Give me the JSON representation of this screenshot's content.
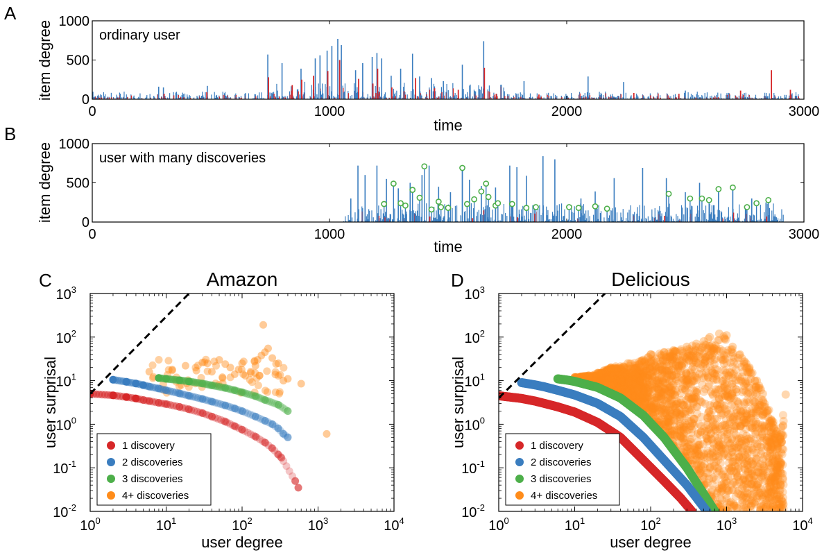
{
  "panels": {
    "a": {
      "letter": "A",
      "inset_label": "ordinary user",
      "ylabel": "item degree",
      "xlabel": "time",
      "xticks": [
        "0",
        "1000",
        "2000",
        "3000"
      ],
      "yticks": [
        "0",
        "500",
        "1000"
      ]
    },
    "b": {
      "letter": "B",
      "inset_label": "user with many discoveries",
      "ylabel": "item degree",
      "xlabel": "time",
      "xticks": [
        "0",
        "1000",
        "2000",
        "3000"
      ],
      "yticks": [
        "0",
        "500",
        "1000"
      ]
    },
    "c": {
      "letter": "C",
      "title": "Amazon",
      "xlabel": "user degree",
      "ylabel": "user surprisal",
      "xticks": [
        "10^0",
        "10^1",
        "10^2",
        "10^3",
        "10^4"
      ],
      "yticks": [
        "10^-2",
        "10^-1",
        "10^0",
        "10^1",
        "10^2",
        "10^3"
      ],
      "legend": [
        "1 discovery",
        "2 discoveries",
        "3 discoveries",
        "4+ discoveries"
      ]
    },
    "d": {
      "letter": "D",
      "title": "Delicious",
      "xlabel": "user degree",
      "ylabel": "user surprisal",
      "xticks": [
        "10^0",
        "10^1",
        "10^2",
        "10^3",
        "10^4"
      ],
      "yticks": [
        "10^-2",
        "10^-1",
        "10^0",
        "10^1",
        "10^2",
        "10^3"
      ],
      "legend": [
        "1 discovery",
        "2 discoveries",
        "3 discoveries",
        "4+ discoveries"
      ]
    }
  },
  "colors": {
    "blue": "#3a7dbf",
    "red": "#d62728",
    "green": "#4daf4a",
    "orange": "#ff8c1a",
    "ring": "#4daf4a"
  },
  "chart_data": [
    {
      "type": "bar",
      "panel": "A",
      "xlabel": "time",
      "ylabel": "item degree",
      "xlim": [
        0,
        3000
      ],
      "ylim": [
        0,
        1000
      ],
      "series": [
        {
          "x": [
            280,
            300,
            485,
            740,
            800,
            880,
            940,
            960,
            990,
            1010,
            1035,
            1050,
            1110,
            1140,
            1180,
            1200,
            1220,
            1260,
            1300,
            1350,
            1380,
            1430,
            1480,
            1560,
            1650,
            1820,
            2090,
            2240,
            2500
          ],
          "y": [
            160,
            150,
            170,
            570,
            460,
            390,
            520,
            560,
            620,
            680,
            770,
            690,
            370,
            460,
            540,
            590,
            520,
            300,
            390,
            580,
            290,
            270,
            230,
            440,
            740,
            230,
            290,
            220,
            110
          ]
        },
        {
          "x": [
            300,
            480,
            740,
            840,
            880,
            930,
            990,
            1040,
            1120,
            1180,
            1200,
            1260,
            1360,
            1440,
            1540,
            1650,
            1700,
            1880,
            2280,
            2470,
            2730,
            2860,
            2940
          ],
          "y": [
            70,
            90,
            280,
            180,
            250,
            300,
            360,
            500,
            260,
            200,
            390,
            150,
            270,
            140,
            120,
            400,
            70,
            60,
            80,
            70,
            110,
            370,
            120
          ]
        }
      ]
    },
    {
      "type": "bar",
      "panel": "B",
      "xlabel": "time",
      "ylabel": "item degree",
      "xlim": [
        0,
        3000
      ],
      "ylim": [
        0,
        1000
      ],
      "series": [
        {
          "x": [
            1090,
            1120,
            1150,
            1200,
            1240,
            1290,
            1340,
            1390,
            1420,
            1460,
            1510,
            1560,
            1590,
            1640,
            1700,
            1760,
            1790,
            1830,
            1900,
            1950,
            2060,
            2120,
            2200,
            2320,
            2420,
            2500,
            2560,
            2640,
            2700,
            2780,
            2840
          ],
          "y": [
            300,
            720,
            600,
            720,
            550,
            430,
            500,
            600,
            720,
            450,
            380,
            690,
            540,
            460,
            440,
            720,
            700,
            590,
            840,
            800,
            300,
            390,
            560,
            690,
            560,
            380,
            500,
            450,
            430,
            300,
            250
          ]
        },
        {
          "x": [
            1230,
            1420,
            1600,
            1790,
            2410,
            2700,
            2840
          ],
          "y": [
            60,
            70,
            50,
            60,
            80,
            120,
            70
          ]
        },
        {
          "x": [
            1230,
            1270,
            1300,
            1320,
            1350,
            1380,
            1400,
            1430,
            1460,
            1470,
            1500,
            1560,
            1580,
            1610,
            1640,
            1660,
            1670,
            1700,
            1710,
            1770,
            1830,
            1870,
            2010,
            2050,
            2120,
            2170,
            2430,
            2520,
            2570,
            2600,
            2640,
            2700,
            2760,
            2800,
            2850
          ],
          "y": [
            230,
            490,
            240,
            210,
            410,
            310,
            710,
            160,
            260,
            190,
            180,
            690,
            230,
            290,
            390,
            490,
            320,
            210,
            240,
            230,
            180,
            190,
            190,
            180,
            200,
            170,
            360,
            300,
            300,
            280,
            420,
            440,
            190,
            240,
            280
          ]
        }
      ]
    },
    {
      "type": "scatter",
      "panel": "C",
      "title": "Amazon",
      "xlabel": "user degree",
      "ylabel": "user surprisal",
      "xscale": "log",
      "yscale": "log",
      "xlim": [
        1,
        10000
      ],
      "ylim": [
        0.01,
        1000
      ],
      "reference_line": {
        "style": "dashed",
        "points": [
          [
            1,
            5
          ],
          [
            20,
            1000
          ]
        ]
      },
      "legend_position": "lower-left",
      "series": [
        {
          "name": "1 discovery",
          "x": [
            1,
            2,
            3,
            4,
            5,
            6,
            8,
            10,
            15,
            20,
            30,
            40,
            60,
            80,
            100,
            150,
            200,
            250,
            300,
            330,
            500,
            550
          ],
          "y": [
            5.0,
            4.6,
            4.2,
            3.9,
            3.6,
            3.4,
            3.1,
            2.9,
            2.5,
            2.2,
            1.8,
            1.5,
            1.15,
            0.9,
            0.75,
            0.52,
            0.38,
            0.28,
            0.2,
            0.17,
            0.05,
            0.035
          ]
        },
        {
          "name": "2 discoveries",
          "x": [
            2,
            3,
            4,
            5,
            6,
            8,
            10,
            15,
            20,
            30,
            40,
            60,
            80,
            100,
            150,
            200,
            250,
            300,
            350,
            400
          ],
          "y": [
            10.5,
            9.4,
            8.6,
            7.9,
            7.3,
            6.6,
            6.0,
            5.1,
            4.5,
            3.8,
            3.3,
            2.7,
            2.3,
            2.0,
            1.5,
            1.2,
            1.0,
            0.8,
            0.6,
            0.5
          ]
        },
        {
          "name": "3 discoveries",
          "x": [
            8,
            10,
            15,
            20,
            30,
            40,
            60,
            80,
            100,
            150,
            200,
            300,
            400
          ],
          "y": [
            11.5,
            11.0,
            10.2,
            9.6,
            8.6,
            7.8,
            6.8,
            6.0,
            5.4,
            4.4,
            3.6,
            2.8,
            2.0
          ]
        },
        {
          "name": "4+ discoveries",
          "x": [
            6,
            12,
            18,
            25,
            30,
            35,
            40,
            50,
            55,
            60,
            70,
            80,
            90,
            100,
            110,
            130,
            150,
            160,
            180,
            190,
            200,
            220,
            250,
            300,
            350,
            400,
            600,
            1300
          ],
          "y": [
            16,
            18,
            22,
            17,
            26,
            25,
            16,
            30,
            12,
            24,
            20,
            14,
            18,
            25,
            13,
            16,
            22,
            30,
            38,
            190,
            45,
            55,
            33,
            25,
            10,
            11,
            8.5,
            0.6
          ]
        }
      ]
    },
    {
      "type": "scatter",
      "panel": "D",
      "title": "Delicious",
      "xlabel": "user degree",
      "ylabel": "user surprisal",
      "xscale": "log",
      "yscale": "log",
      "xlim": [
        1,
        10000
      ],
      "ylim": [
        0.01,
        1000
      ],
      "reference_line": {
        "style": "dashed",
        "points": [
          [
            1,
            4
          ],
          [
            25,
            1000
          ]
        ]
      },
      "legend_position": "lower-left",
      "series": [
        {
          "name": "1 discovery",
          "x": [
            1,
            2,
            3,
            4,
            6,
            10,
            20,
            40,
            80,
            150,
            250,
            350
          ],
          "y": [
            4.5,
            3.9,
            3.4,
            3.0,
            2.5,
            1.9,
            1.1,
            0.5,
            0.15,
            0.05,
            0.02,
            0.01
          ]
        },
        {
          "name": "2 discoveries",
          "x": [
            2,
            3,
            4,
            6,
            10,
            20,
            40,
            80,
            150,
            300,
            550
          ],
          "y": [
            9.0,
            8.0,
            7.2,
            6.0,
            4.7,
            3.0,
            1.5,
            0.5,
            0.15,
            0.04,
            0.01
          ]
        },
        {
          "name": "3 discoveries",
          "x": [
            6,
            8,
            10,
            20,
            40,
            80,
            150,
            300,
            700
          ],
          "y": [
            11,
            10.3,
            9.6,
            7.0,
            4.0,
            1.6,
            0.5,
            0.1,
            0.01
          ]
        },
        {
          "name": "4+ discoveries",
          "x": [
            10,
            15,
            20,
            30,
            50,
            80,
            100,
            150,
            200,
            300,
            400,
            500,
            600,
            800,
            1000,
            1200,
            1500,
            2000,
            2500,
            3000,
            5000,
            6000
          ],
          "y": [
            12,
            13,
            15,
            20,
            25,
            30,
            40,
            45,
            50,
            60,
            70,
            80,
            100,
            120,
            110,
            60,
            40,
            20,
            10,
            5,
            0.5,
            4.8
          ]
        }
      ]
    }
  ]
}
